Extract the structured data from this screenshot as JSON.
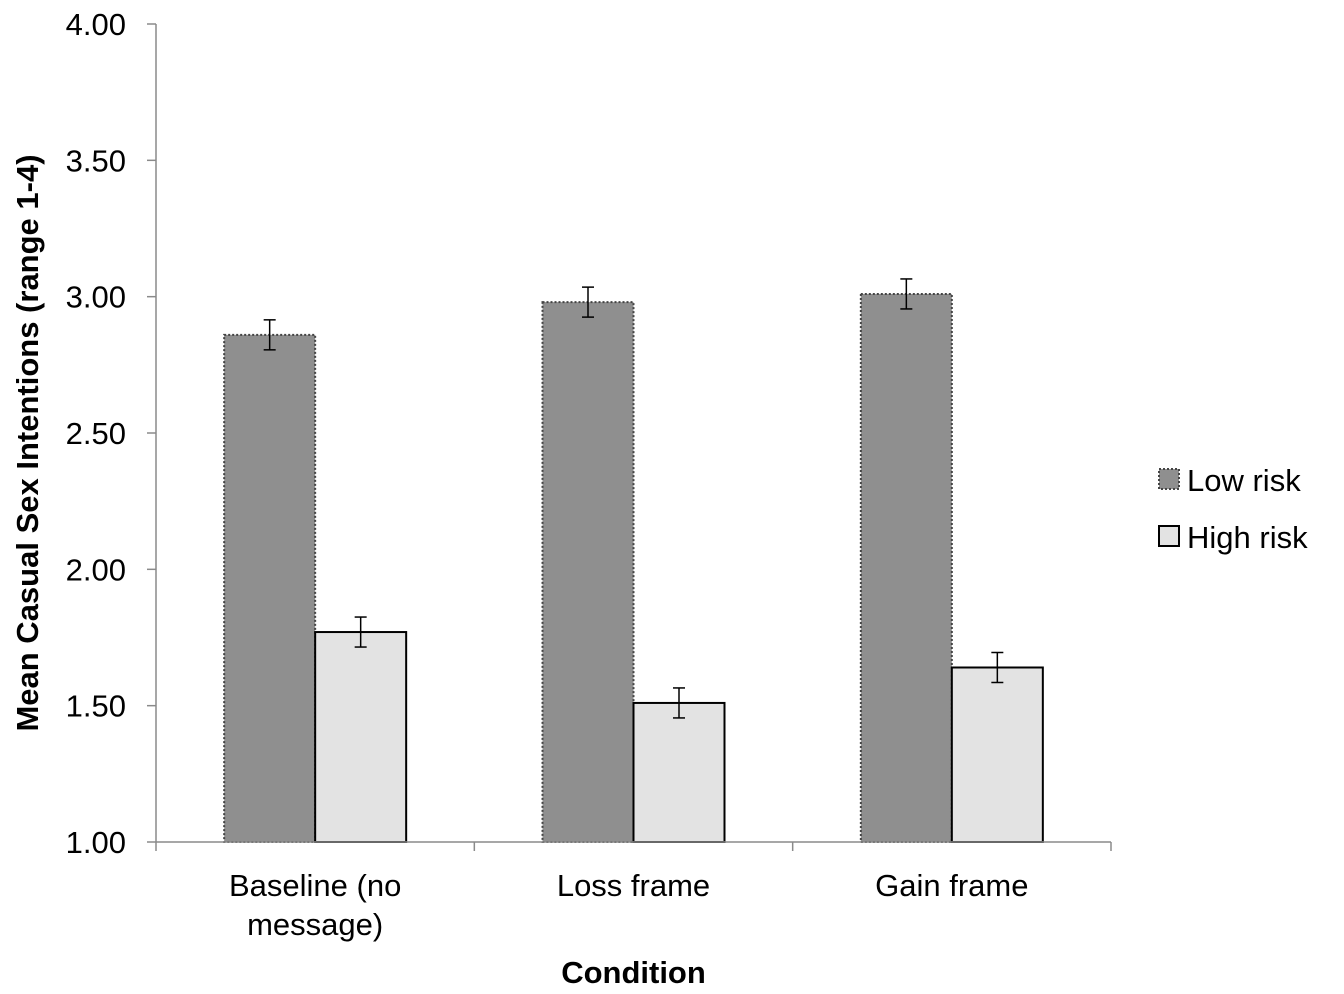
{
  "chart_data": {
    "type": "bar",
    "title": "",
    "xlabel": "Condition",
    "ylabel": "Mean Casual Sex Intentions (range 1-4)",
    "ylim": [
      1.0,
      4.0
    ],
    "yticks": [
      1.0,
      1.5,
      2.0,
      2.5,
      3.0,
      3.5,
      4.0
    ],
    "ytick_labels": [
      "1.00",
      "1.50",
      "2.00",
      "2.50",
      "3.00",
      "3.50",
      "4.00"
    ],
    "categories": [
      [
        "Baseline (no",
        "message)"
      ],
      [
        "Loss frame"
      ],
      [
        "Gain frame"
      ]
    ],
    "grid": false,
    "legend_position": "right",
    "series": [
      {
        "name": "Low risk",
        "values": [
          2.86,
          2.98,
          3.01
        ],
        "errors": [
          0.055,
          0.055,
          0.055
        ],
        "color": "#8f8f8f",
        "border": "dotted"
      },
      {
        "name": "High risk",
        "values": [
          1.77,
          1.51,
          1.64
        ],
        "errors": [
          0.055,
          0.055,
          0.055
        ],
        "color": "#e3e3e3",
        "border": "solid"
      }
    ]
  }
}
